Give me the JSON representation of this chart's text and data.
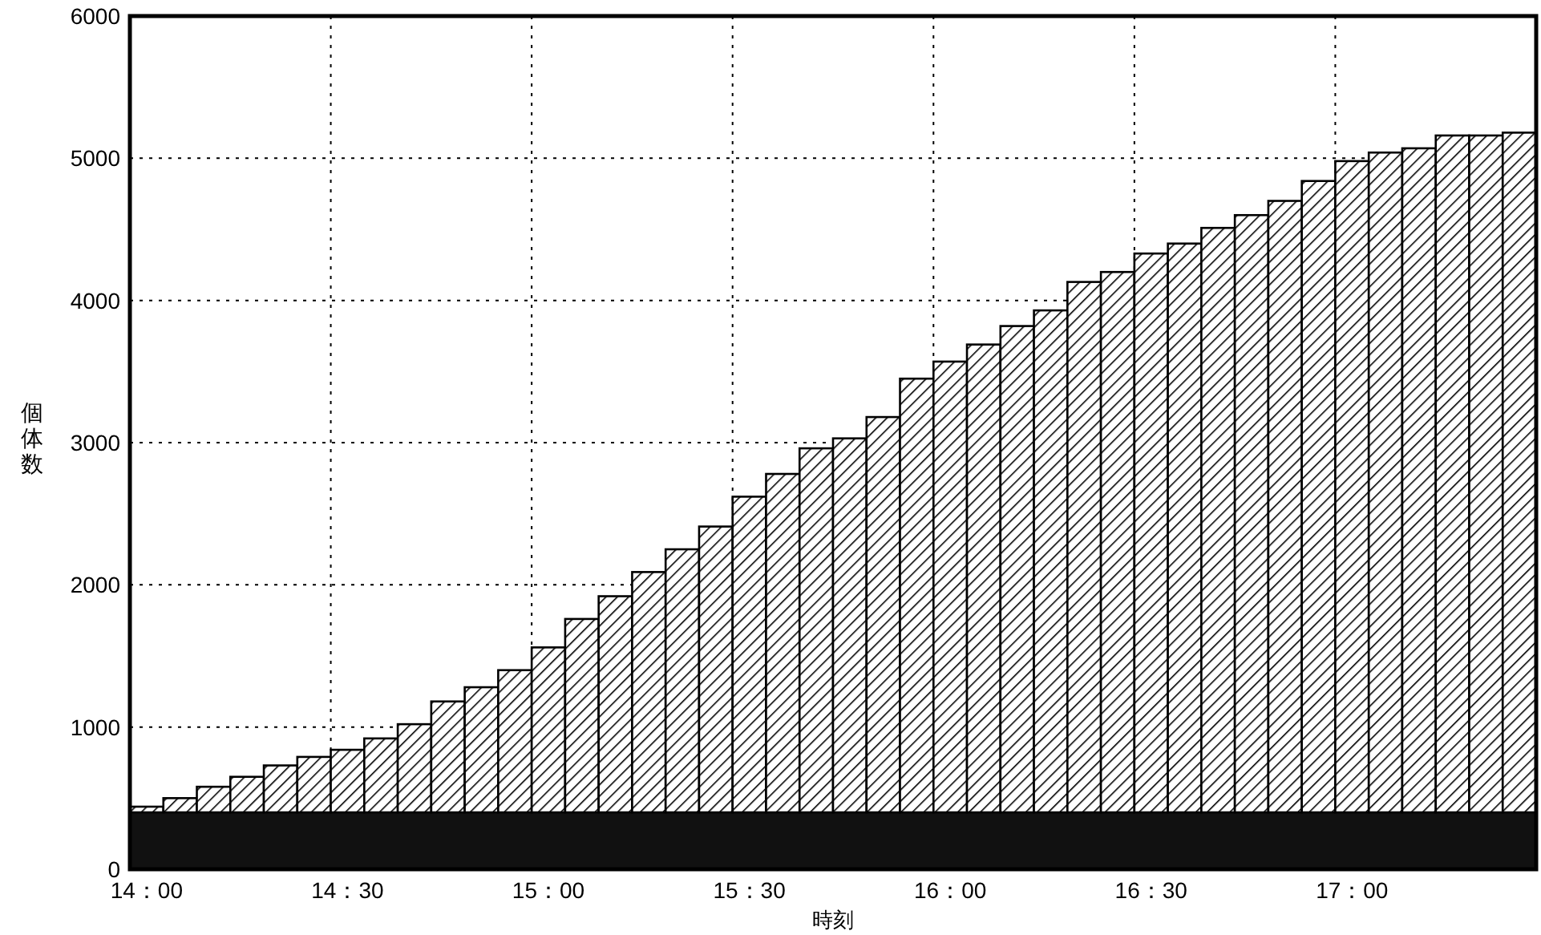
{
  "chart_data": {
    "type": "bar",
    "xlabel": "時刻",
    "ylabel": "個体数",
    "categories": [
      "14：00",
      null,
      null,
      null,
      null,
      null,
      "14：30",
      null,
      null,
      null,
      null,
      null,
      "15：00",
      null,
      null,
      null,
      null,
      null,
      "15：30",
      null,
      null,
      null,
      null,
      null,
      "16：00",
      null,
      null,
      null,
      null,
      null,
      "16：30",
      null,
      null,
      null,
      null,
      null,
      "17：00",
      null,
      null,
      null,
      null,
      null
    ],
    "base": [
      400,
      400,
      400,
      400,
      400,
      400,
      400,
      400,
      400,
      400,
      400,
      400,
      400,
      400,
      400,
      400,
      400,
      400,
      400,
      400,
      400,
      400,
      400,
      400,
      400,
      400,
      400,
      400,
      400,
      400,
      400,
      400,
      400,
      400,
      400,
      400,
      400,
      400,
      400,
      400,
      400,
      400
    ],
    "values": [
      40,
      100,
      180,
      250,
      330,
      390,
      440,
      520,
      620,
      780,
      880,
      1000,
      1160,
      1360,
      1520,
      1690,
      1850,
      2010,
      2220,
      2380,
      2560,
      2630,
      2780,
      3050,
      3170,
      3290,
      3420,
      3530,
      3730,
      3800,
      3930,
      4000,
      4110,
      4200,
      4300,
      4440,
      4580,
      4640,
      4670,
      4760,
      4760,
      4780
    ],
    "color": "#ffffff",
    "bands": [
      {
        "axis": "y",
        "from": 0,
        "to": 400,
        "color": "#111111"
      }
    ],
    "ylim": [
      0,
      6000
    ],
    "yticks": [
      0,
      1000,
      2000,
      3000,
      4000,
      5000,
      6000
    ],
    "grid": true
  }
}
